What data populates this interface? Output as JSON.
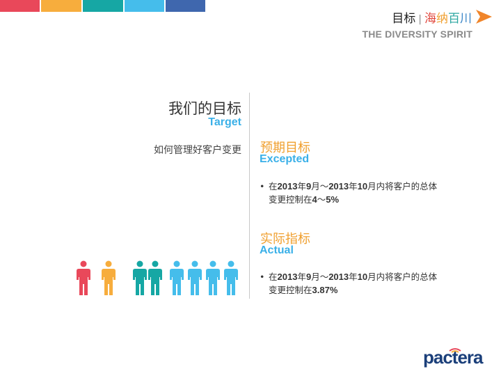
{
  "colors": {
    "bars": [
      "#e9485a",
      "#f7ad3d",
      "#16a7a4",
      "#45bdeb",
      "#3f67ae"
    ],
    "accent_orange": "#f0a030",
    "accent_blue": "#3ab0e8",
    "people": [
      "#e9485a",
      "#f7ad3d",
      "#16a7a4",
      "#16a7a4",
      "#45bdeb",
      "#45bdeb",
      "#45bdeb",
      "#45bdeb"
    ]
  },
  "header": {
    "title": "目标",
    "separator": "|",
    "brand_chars": [
      "海",
      "纳",
      "百",
      "川"
    ],
    "tagline": "THE DIVERSITY SPIRIT",
    "arrow_icon": "chevron-right-icon"
  },
  "goal": {
    "title": "我们的目标",
    "subtitle": "Target",
    "description": "如何管理好客户变更"
  },
  "expected": {
    "title": "预期目标",
    "subtitle": "Excepted",
    "bullet": "•",
    "parts": [
      "在",
      "2013",
      "年",
      "9",
      "月～",
      "2013",
      "年",
      "10",
      "月内将客户的总体变更控制在",
      "4",
      "～",
      "5%"
    ]
  },
  "actual": {
    "title": "实际指标",
    "subtitle": "Actual",
    "bullet": "•",
    "parts": [
      "在",
      "2013",
      "年",
      "9",
      "月～",
      "2013",
      "年",
      "10",
      "月内将客户的总体变更控制在",
      "3.87%"
    ]
  },
  "logo": {
    "text": "pactera"
  }
}
